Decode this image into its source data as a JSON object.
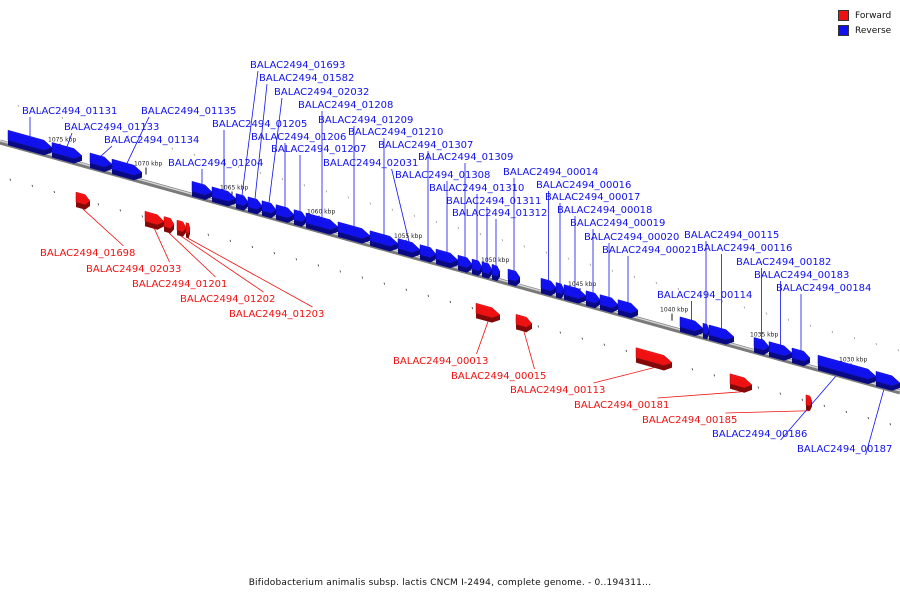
{
  "legend": {
    "forward_label": "Forward",
    "reverse_label": "Reverse",
    "forward_color": "#ee1111",
    "reverse_color": "#1111ee"
  },
  "caption": "Bifidobacterium animalis subsp. lactis CNCM I-2494, complete genome. - 0..194311...",
  "kbp_ticks": [
    "1075 kbp",
    "1070 kbp",
    "1065 kbp",
    "1060 kbp",
    "1055 kbp",
    "1050 kbp",
    "1045 kbp",
    "1040 kbp",
    "1035 kbp",
    "1030 kbp"
  ],
  "genes": [
    {
      "id": "BALAC2494_01131",
      "strand": "reverse"
    },
    {
      "id": "BALAC2494_01133",
      "strand": "reverse"
    },
    {
      "id": "BALAC2494_01134",
      "strand": "reverse"
    },
    {
      "id": "BALAC2494_01135",
      "strand": "reverse"
    },
    {
      "id": "BALAC2494_01698",
      "strand": "forward"
    },
    {
      "id": "BALAC2494_02033",
      "strand": "forward"
    },
    {
      "id": "BALAC2494_01201",
      "strand": "forward"
    },
    {
      "id": "BALAC2494_01202",
      "strand": "forward"
    },
    {
      "id": "BALAC2494_01203",
      "strand": "forward"
    },
    {
      "id": "BALAC2494_01204",
      "strand": "reverse"
    },
    {
      "id": "BALAC2494_01205",
      "strand": "reverse"
    },
    {
      "id": "BALAC2494_01693",
      "strand": "reverse"
    },
    {
      "id": "BALAC2494_01582",
      "strand": "reverse"
    },
    {
      "id": "BALAC2494_02032",
      "strand": "reverse"
    },
    {
      "id": "BALAC2494_01206",
      "strand": "reverse"
    },
    {
      "id": "BALAC2494_01207",
      "strand": "reverse"
    },
    {
      "id": "BALAC2494_01208",
      "strand": "reverse"
    },
    {
      "id": "BALAC2494_01209",
      "strand": "reverse"
    },
    {
      "id": "BALAC2494_01210",
      "strand": "reverse"
    },
    {
      "id": "BALAC2494_02031",
      "strand": "reverse"
    },
    {
      "id": "BALAC2494_01307",
      "strand": "reverse"
    },
    {
      "id": "BALAC2494_01308",
      "strand": "reverse"
    },
    {
      "id": "BALAC2494_01309",
      "strand": "reverse"
    },
    {
      "id": "BALAC2494_01310",
      "strand": "reverse"
    },
    {
      "id": "BALAC2494_01311",
      "strand": "reverse"
    },
    {
      "id": "BALAC2494_01312",
      "strand": "reverse"
    },
    {
      "id": "BALAC2494_00013",
      "strand": "forward"
    },
    {
      "id": "BALAC2494_00014",
      "strand": "reverse"
    },
    {
      "id": "BALAC2494_00015",
      "strand": "forward"
    },
    {
      "id": "BALAC2494_00016",
      "strand": "reverse"
    },
    {
      "id": "BALAC2494_00017",
      "strand": "reverse"
    },
    {
      "id": "BALAC2494_00018",
      "strand": "reverse"
    },
    {
      "id": "BALAC2494_00019",
      "strand": "reverse"
    },
    {
      "id": "BALAC2494_00020",
      "strand": "reverse"
    },
    {
      "id": "BALAC2494_00021",
      "strand": "reverse"
    },
    {
      "id": "BALAC2494_00113",
      "strand": "forward"
    },
    {
      "id": "BALAC2494_00114",
      "strand": "reverse"
    },
    {
      "id": "BALAC2494_00115",
      "strand": "reverse"
    },
    {
      "id": "BALAC2494_00116",
      "strand": "reverse"
    },
    {
      "id": "BALAC2494_00181",
      "strand": "forward"
    },
    {
      "id": "BALAC2494_00182",
      "strand": "reverse"
    },
    {
      "id": "BALAC2494_00183",
      "strand": "reverse"
    },
    {
      "id": "BALAC2494_00184",
      "strand": "reverse"
    },
    {
      "id": "BALAC2494_00185",
      "strand": "forward"
    },
    {
      "id": "BALAC2494_00186",
      "strand": "reverse"
    },
    {
      "id": "BALAC2494_00187",
      "strand": "reverse"
    }
  ]
}
